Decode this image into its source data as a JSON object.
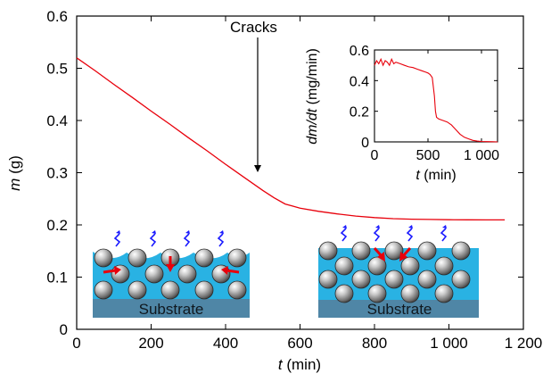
{
  "chart_data": [
    {
      "type": "line",
      "xlabel_var": "t",
      "xlabel_unit": " (min)",
      "ylabel_var": "m",
      "ylabel_unit": " (g)",
      "xlim": [
        0,
        1200
      ],
      "ylim": [
        0,
        0.6
      ],
      "xticks": [
        "0",
        "200",
        "400",
        "600",
        "800",
        "1 000",
        "1 200"
      ],
      "xtick_values": [
        0,
        200,
        400,
        600,
        800,
        1000,
        1200
      ],
      "yticks": [
        "0",
        "0.1",
        "0.2",
        "0.3",
        "0.4",
        "0.5",
        "0.6"
      ],
      "ytick_values": [
        0,
        0.1,
        0.2,
        0.3,
        0.4,
        0.5,
        0.6
      ],
      "grid": false,
      "series": [
        {
          "color": "#e8000b",
          "x": [
            0,
            50,
            100,
            150,
            200,
            250,
            300,
            350,
            400,
            450,
            500,
            530,
            560,
            580,
            600,
            650,
            700,
            750,
            800,
            850,
            900,
            950,
            1000,
            1050,
            1100,
            1150
          ],
          "y": [
            0.52,
            0.495,
            0.469,
            0.444,
            0.418,
            0.393,
            0.367,
            0.342,
            0.316,
            0.291,
            0.266,
            0.252,
            0.24,
            0.236,
            0.232,
            0.226,
            0.221,
            0.217,
            0.214,
            0.212,
            0.211,
            0.2105,
            0.21,
            0.2098,
            0.2096,
            0.2095
          ]
        }
      ],
      "annotation": {
        "text": "Cracks",
        "x": 490,
        "y": 0.3
      },
      "schematics": [
        {
          "label": "Substrate"
        },
        {
          "label": "Substrate"
        }
      ]
    },
    {
      "type": "line",
      "xlabel_var": "t",
      "xlabel_unit": " (min)",
      "ylabel_var": "dm/dt",
      "ylabel_unit": " (mg/min)",
      "xlim": [
        0,
        1150
      ],
      "ylim": [
        0,
        0.6
      ],
      "xticks": [
        "0",
        "500",
        "1 000"
      ],
      "xtick_values": [
        0,
        500,
        1000
      ],
      "yticks": [
        "0",
        "0.2",
        "0.4",
        "0.6"
      ],
      "ytick_values": [
        0,
        0.2,
        0.4,
        0.6
      ],
      "series": [
        {
          "color": "#e8000b",
          "x": [
            0,
            20,
            40,
            60,
            80,
            100,
            120,
            140,
            160,
            180,
            200,
            240,
            280,
            320,
            360,
            400,
            440,
            480,
            500,
            520,
            540,
            560,
            570,
            580,
            600,
            640,
            680,
            720,
            760,
            800,
            840,
            880,
            920,
            960,
            1000,
            1050,
            1100,
            1150
          ],
          "y": [
            0.5,
            0.53,
            0.51,
            0.54,
            0.5,
            0.53,
            0.52,
            0.5,
            0.54,
            0.51,
            0.52,
            0.51,
            0.5,
            0.49,
            0.485,
            0.475,
            0.465,
            0.455,
            0.45,
            0.44,
            0.42,
            0.3,
            0.2,
            0.16,
            0.15,
            0.14,
            0.13,
            0.11,
            0.08,
            0.05,
            0.03,
            0.02,
            0.01,
            0.005,
            0.003,
            0.002,
            0.001,
            0.0
          ]
        }
      ]
    }
  ]
}
